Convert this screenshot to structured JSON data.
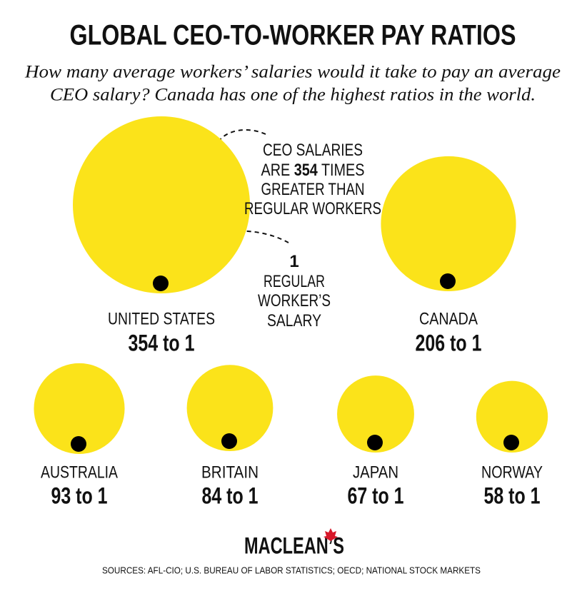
{
  "chart_data": {
    "type": "bubble",
    "title": "GLOBAL CEO-TO-WORKER PAY RATIOS",
    "subtitle": [
      "How many average workers’ salaries would it take to pay an average",
      "CEO salary? Canada has one of the highest ratios in the world."
    ],
    "categories": [
      "UNITED STATES",
      "CANADA",
      "AUSTRALIA",
      "BRITAIN",
      "JAPAN",
      "NORWAY"
    ],
    "values": [
      354,
      206,
      93,
      84,
      67,
      58
    ],
    "value_labels": [
      "354 to 1",
      "206 to 1",
      "93 to 1",
      "84 to 1",
      "67 to 1",
      "58 to 1"
    ],
    "color": "#fbe31a",
    "annotations": [
      {
        "lines": [
          [
            "CEO SALARIES"
          ],
          [
            "ARE ",
            {
              "text": "354",
              "bold": true
            },
            " TIMES"
          ],
          [
            "GREATER THAN"
          ],
          [
            "REGULAR WORKERS"
          ]
        ]
      },
      {
        "lines": [
          [
            {
              "text": "1",
              "bold": true
            }
          ],
          [
            "REGULAR"
          ],
          [
            "WORKER’S"
          ],
          [
            "SALARY"
          ]
        ]
      }
    ],
    "brand": "MACLEAN’S",
    "source": "SOURCES: AFL-CIO; U.S. BUREAU OF LABOR STATISTICS; OECD; NATIONAL STOCK MARKETS"
  }
}
